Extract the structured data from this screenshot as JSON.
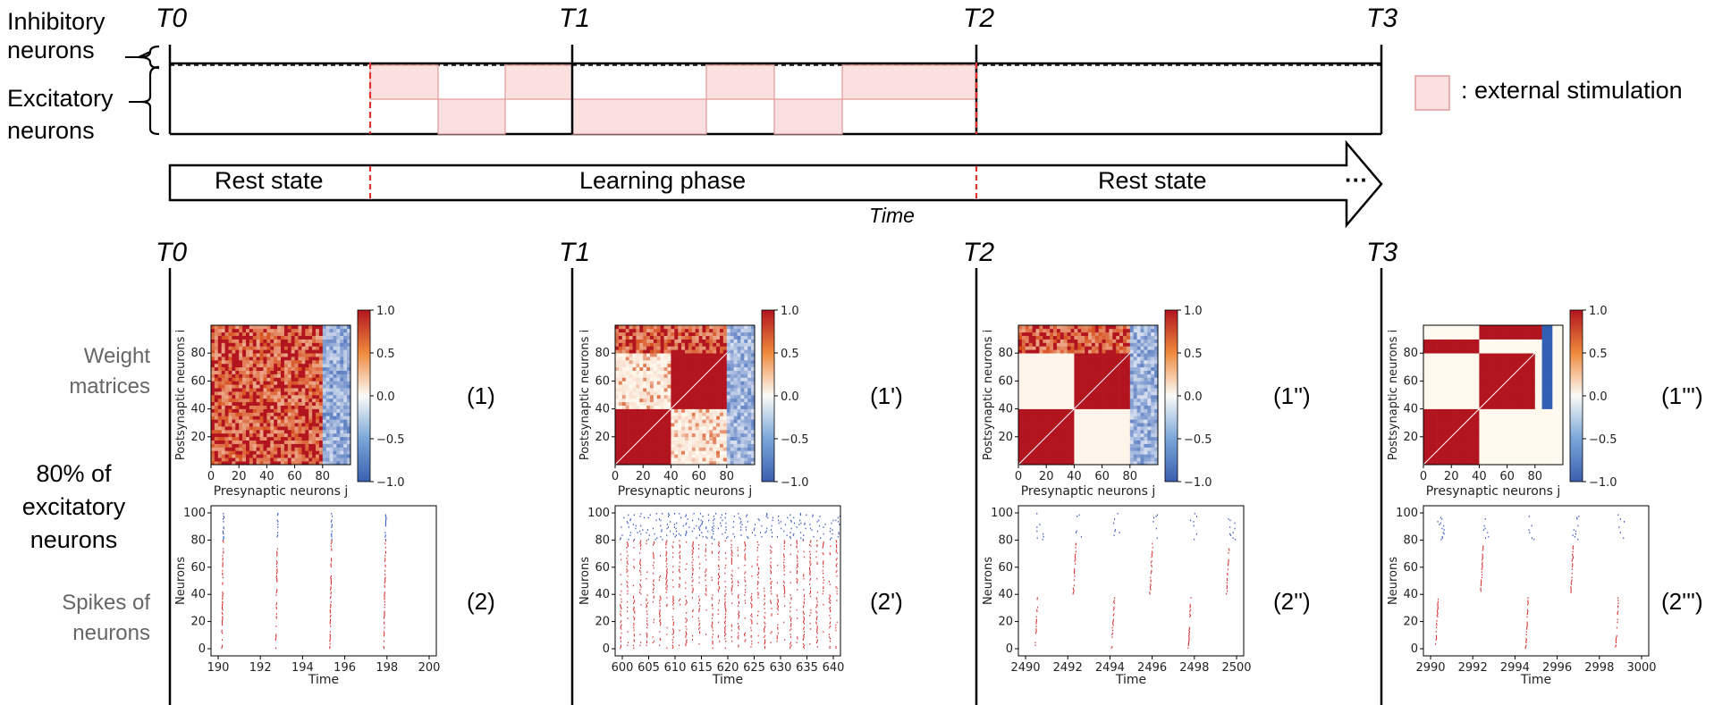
{
  "labels": {
    "inhibitory": "Inhibitory\nneurons",
    "excitatory": "Excitatory\nneurons",
    "legend": ": external stimulation",
    "rest1": "Rest state",
    "learning": "Learning phase",
    "rest2": "Rest state",
    "time": "Time",
    "ellipsis": "···",
    "weight": "Weight\nmatrices",
    "pct": "80% of\nexcitatory\nneurons",
    "spikes": "Spikes of\nneurons"
  },
  "time_markers": [
    "T0",
    "T1",
    "T2",
    "T3"
  ],
  "colors": {
    "stim_fill": "#fbe0e0",
    "stim_stroke": "#e39a9a",
    "red_dash": "#e03030",
    "hot": "#b2151f",
    "cold": "#3a5fb0",
    "spike_red": "#d43030",
    "spike_blue": "#3050c0"
  },
  "heatmaps": [
    {
      "id": "1",
      "label": "(1)",
      "kind": "random"
    },
    {
      "id": "1p",
      "label": "(1')",
      "kind": "learning"
    },
    {
      "id": "1pp",
      "label": "(1'')",
      "kind": "trained"
    },
    {
      "id": "1ppp",
      "label": "(1''')",
      "kind": "final"
    }
  ],
  "heatmap_axes": {
    "ylabel": "Postsynaptic neurons i",
    "xlabel": "Presynaptic neurons j",
    "ticks": [
      "0",
      "20",
      "40",
      "60",
      "80"
    ],
    "colorbar_ticks": [
      "1.0",
      "0.5",
      "0.0",
      "−0.5",
      "−1.0"
    ]
  },
  "rasters": [
    {
      "id": "2",
      "label": "(2)",
      "xticks": [
        "190",
        "192",
        "194",
        "196",
        "198",
        "200"
      ]
    },
    {
      "id": "2p",
      "label": "(2')",
      "xticks": [
        "600",
        "605",
        "610",
        "615",
        "620",
        "625",
        "630",
        "635",
        "640"
      ]
    },
    {
      "id": "2pp",
      "label": "(2'')",
      "xticks": [
        "2490",
        "2492",
        "2494",
        "2496",
        "2498",
        "2500"
      ]
    },
    {
      "id": "2ppp",
      "label": "(2''')",
      "xticks": [
        "2990",
        "2992",
        "2994",
        "2996",
        "2998",
        "3000"
      ]
    }
  ],
  "raster_axes": {
    "ylabel": "Neurons",
    "xlabel": "Time",
    "yticks": [
      "0",
      "20",
      "40",
      "60",
      "80",
      "100"
    ]
  }
}
